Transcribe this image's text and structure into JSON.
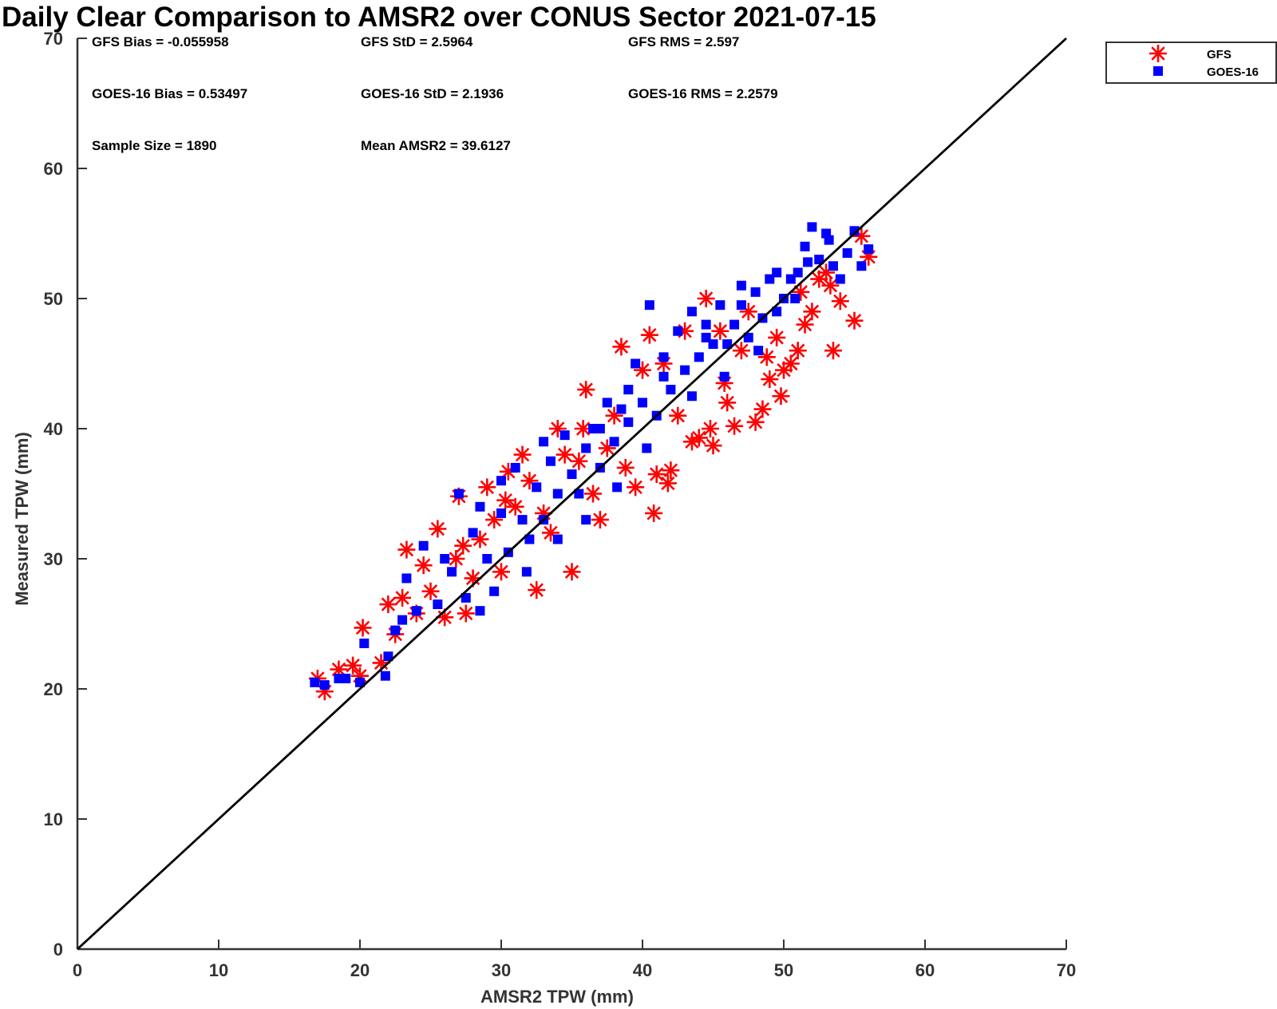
{
  "chart_data": {
    "type": "scatter",
    "title": "Daily Clear Comparison to AMSR2 over CONUS Sector 2021-07-15",
    "xlabel": "AMSR2 TPW (mm)",
    "ylabel": "Measured TPW (mm)",
    "xlim": [
      0,
      70
    ],
    "ylim": [
      0,
      70
    ],
    "x_ticks": [
      "0",
      "10",
      "20",
      "30",
      "40",
      "50",
      "60",
      "70"
    ],
    "y_ticks": [
      "0",
      "10",
      "20",
      "30",
      "40",
      "50",
      "60",
      "70"
    ],
    "grid": false,
    "legend_position": "outside-top-right",
    "reference_line": {
      "x": [
        0,
        70
      ],
      "y": [
        0,
        70
      ],
      "color": "#000000"
    },
    "stats": {
      "gfs_bias": "GFS Bias = -0.055958",
      "gfs_std": "GFS StD = 2.5964",
      "gfs_rms": "GFS RMS = 2.597",
      "goes_bias": "GOES-16 Bias = 0.53497",
      "goes_std": "GOES-16 StD = 2.1936",
      "goes_rms": "GOES-16 RMS = 2.2579",
      "sample_size": "Sample Size = 1890",
      "mean_amsr2": "Mean AMSR2 = 39.6127"
    },
    "series": [
      {
        "name": "GFS",
        "marker": "asterisk",
        "color": "#ff0000",
        "x": [
          17.0,
          17.5,
          18.5,
          19.5,
          20.0,
          20.2,
          21.5,
          22.5,
          23.3,
          24.0,
          24.5,
          25.5,
          26.0,
          27.0,
          27.5,
          28.0,
          29.0,
          30.0,
          30.5,
          31.5,
          32.5,
          33.0,
          34.0,
          35.0,
          35.5,
          36.0,
          37.0,
          38.0,
          38.5,
          39.5,
          40.0,
          40.5,
          41.0,
          41.5,
          42.0,
          43.0,
          44.0,
          44.5,
          45.0,
          45.5,
          46.5,
          47.0,
          48.0,
          48.5,
          49.0,
          49.5,
          50.0,
          51.0,
          51.5,
          52.0,
          53.0,
          53.5,
          54.0,
          55.0,
          55.5,
          56.0,
          22.0,
          25.0,
          28.5,
          31.0,
          33.5,
          36.5,
          38.8,
          42.5,
          45.8,
          48.8,
          51.2,
          53.3,
          26.8,
          29.5,
          34.5,
          40.8,
          46.0,
          50.5,
          23.0,
          27.3,
          32.0,
          37.5,
          43.5,
          47.5,
          52.5,
          30.3,
          35.8,
          41.8,
          44.8,
          49.8
        ],
        "y": [
          20.8,
          19.8,
          21.5,
          21.8,
          21.0,
          24.7,
          22.0,
          24.2,
          30.7,
          25.8,
          29.5,
          32.3,
          25.5,
          34.8,
          25.8,
          28.5,
          35.5,
          29.0,
          36.7,
          38.0,
          27.6,
          33.5,
          40.0,
          29.0,
          37.5,
          43.0,
          33.0,
          41.0,
          46.3,
          35.5,
          44.5,
          47.2,
          36.5,
          45.0,
          36.8,
          47.5,
          39.3,
          50.0,
          38.7,
          47.5,
          40.2,
          46.0,
          40.5,
          41.5,
          43.8,
          47.0,
          44.5,
          46.0,
          48.0,
          49.0,
          52.0,
          46.0,
          49.8,
          48.3,
          54.8,
          53.2,
          26.5,
          27.5,
          31.5,
          34.0,
          32.0,
          35.0,
          37.0,
          41.0,
          43.5,
          45.5,
          50.5,
          51.0,
          30.0,
          33.0,
          38.0,
          33.5,
          42.0,
          45.0,
          27.0,
          31.0,
          36.0,
          38.5,
          39.0,
          49.0,
          51.5,
          34.5,
          40.0,
          35.8,
          40.0,
          42.5
        ]
      },
      {
        "name": "GOES-16",
        "marker": "square",
        "color": "#0000ff",
        "x": [
          16.8,
          17.5,
          18.5,
          19.0,
          20.0,
          20.3,
          21.8,
          22.0,
          22.5,
          23.0,
          23.3,
          24.0,
          24.5,
          25.5,
          26.0,
          26.5,
          27.0,
          27.5,
          28.0,
          28.5,
          29.0,
          29.5,
          30.0,
          30.5,
          31.0,
          31.5,
          32.0,
          32.5,
          33.0,
          33.5,
          34.0,
          34.5,
          35.0,
          35.5,
          36.0,
          36.5,
          37.0,
          37.5,
          38.0,
          38.5,
          39.0,
          39.5,
          40.0,
          40.5,
          41.0,
          41.5,
          42.0,
          42.5,
          43.0,
          43.5,
          44.0,
          44.5,
          45.0,
          45.5,
          46.0,
          46.5,
          47.0,
          47.5,
          48.0,
          48.5,
          49.0,
          49.5,
          50.0,
          50.5,
          51.0,
          51.5,
          52.0,
          52.5,
          53.0,
          53.5,
          54.0,
          54.5,
          55.0,
          55.5,
          56.0,
          31.8,
          34.0,
          36.0,
          38.2,
          40.3,
          43.5,
          45.8,
          48.2,
          50.8,
          53.2,
          28.5,
          30.0,
          33.0,
          37.0,
          39.0,
          41.5,
          44.5,
          47.0,
          49.5,
          51.7
        ],
        "y": [
          20.5,
          20.3,
          20.8,
          20.8,
          20.5,
          23.5,
          21.0,
          22.5,
          24.5,
          25.3,
          28.5,
          26.0,
          31.0,
          26.5,
          30.0,
          29.0,
          35.0,
          27.0,
          32.0,
          26.0,
          30.0,
          27.5,
          33.5,
          30.5,
          37.0,
          33.0,
          31.5,
          35.5,
          33.0,
          37.5,
          35.0,
          39.5,
          36.5,
          35.0,
          38.5,
          40.0,
          37.0,
          42.0,
          39.0,
          41.5,
          40.5,
          45.0,
          42.0,
          49.5,
          41.0,
          45.5,
          43.0,
          47.5,
          44.5,
          49.0,
          45.5,
          47.0,
          46.5,
          49.5,
          46.5,
          48.0,
          49.5,
          47.0,
          50.5,
          48.5,
          51.5,
          49.0,
          50.0,
          51.5,
          52.0,
          54.0,
          55.5,
          53.0,
          55.0,
          52.5,
          51.5,
          53.5,
          55.2,
          52.5,
          53.8,
          29.0,
          31.5,
          33.0,
          35.5,
          38.5,
          42.5,
          44.0,
          46.0,
          50.0,
          54.5,
          34.0,
          36.0,
          39.0,
          40.0,
          43.0,
          44.0,
          48.0,
          51.0,
          52.0,
          52.8
        ]
      }
    ]
  }
}
